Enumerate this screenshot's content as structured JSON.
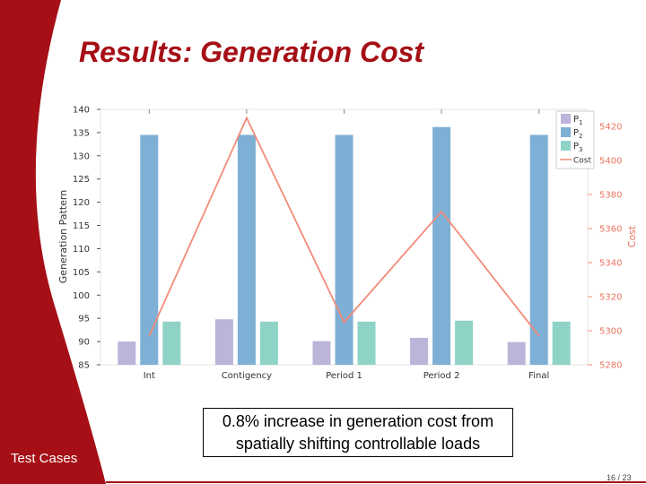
{
  "slide": {
    "title": "Results: Generation Cost",
    "footnote": "Test Cases",
    "callout": "0.8% increase in generation cost from spatially shifting controllable loads",
    "page_number": "16 / 23",
    "accent_color": "#a50f15"
  },
  "chart_data": {
    "type": "bar",
    "categories": [
      "Int",
      "Contigency",
      "Period 1",
      "Period 2",
      "Final"
    ],
    "series": [
      {
        "name": "P1",
        "label_base": "P",
        "label_sub": "1",
        "color": "#bbb5da",
        "values": [
          90,
          94.8,
          90.1,
          90.8,
          89.9
        ]
      },
      {
        "name": "P2",
        "label_base": "P",
        "label_sub": "2",
        "color": "#7eafd4",
        "values": [
          134.5,
          134.5,
          134.5,
          136.2,
          134.5
        ]
      },
      {
        "name": "P3",
        "label_base": "P",
        "label_sub": "3",
        "color": "#8fd3c7",
        "values": [
          94.3,
          94.3,
          94.3,
          94.5,
          94.3
        ]
      }
    ],
    "line_series": {
      "name": "Cost",
      "color": "#f28b78",
      "axis": "right",
      "values": [
        5297,
        5425,
        5305,
        5370,
        5297
      ]
    },
    "ylabel": "Generation Pattern",
    "ylim": [
      85,
      140
    ],
    "yticks": [
      85,
      90,
      95,
      100,
      105,
      110,
      115,
      120,
      125,
      130,
      135,
      140
    ],
    "y2label": "Cost",
    "y2lim": [
      5280,
      5430
    ],
    "y2ticks": [
      5280,
      5300,
      5320,
      5340,
      5360,
      5380,
      5400,
      5420
    ],
    "grid": false,
    "legend_position": "top-right"
  }
}
